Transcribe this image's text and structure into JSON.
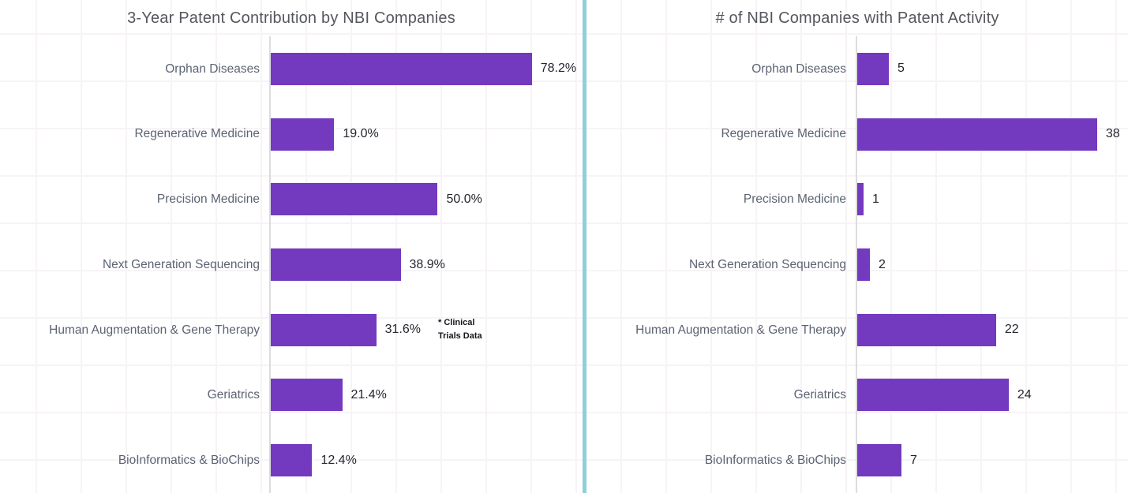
{
  "page": {
    "background_color": "#ffffff",
    "divider_color": "#8ecfdb",
    "grid_color": "#f7f3f6",
    "axis_color": "#dcdcdc"
  },
  "chart_data": [
    {
      "type": "bar",
      "orientation": "horizontal",
      "title": "3-Year Patent Contribution by NBI Companies",
      "categories": [
        "Orphan Diseases",
        "Regenerative Medicine",
        "Precision Medicine",
        "Next Generation Sequencing",
        "Human Augmentation & Gene Therapy",
        "Geriatrics",
        "BioInformatics & BioChips"
      ],
      "values": [
        78.2,
        19.0,
        50.0,
        38.9,
        31.6,
        21.4,
        12.4
      ],
      "value_labels": [
        "78.2%",
        "19.0%",
        "50.0%",
        "38.9%",
        "31.6%",
        "21.4%",
        "12.4%"
      ],
      "unit": "percent",
      "xlim": [
        0,
        93.4
      ],
      "grid": true,
      "legend": "none",
      "bar_color": "#7339be",
      "annotation": {
        "row_index": 4,
        "lines": [
          "* Clinical",
          "Trials Data"
        ]
      }
    },
    {
      "type": "bar",
      "orientation": "horizontal",
      "title": "# of NBI Companies with Patent Activity",
      "categories": [
        "Orphan Diseases",
        "Regenerative Medicine",
        "Precision Medicine",
        "Next Generation Sequencing",
        "Human Augmentation & Gene Therapy",
        "Geriatrics",
        "BioInformatics & BioChips"
      ],
      "values": [
        5,
        38,
        1,
        2,
        22,
        24,
        7
      ],
      "value_labels": [
        "5",
        "38",
        "1",
        "2",
        "22",
        "24",
        "7"
      ],
      "unit": "count",
      "xlim": [
        0,
        42.9
      ],
      "grid": true,
      "legend": "none",
      "bar_color": "#7339be"
    }
  ]
}
